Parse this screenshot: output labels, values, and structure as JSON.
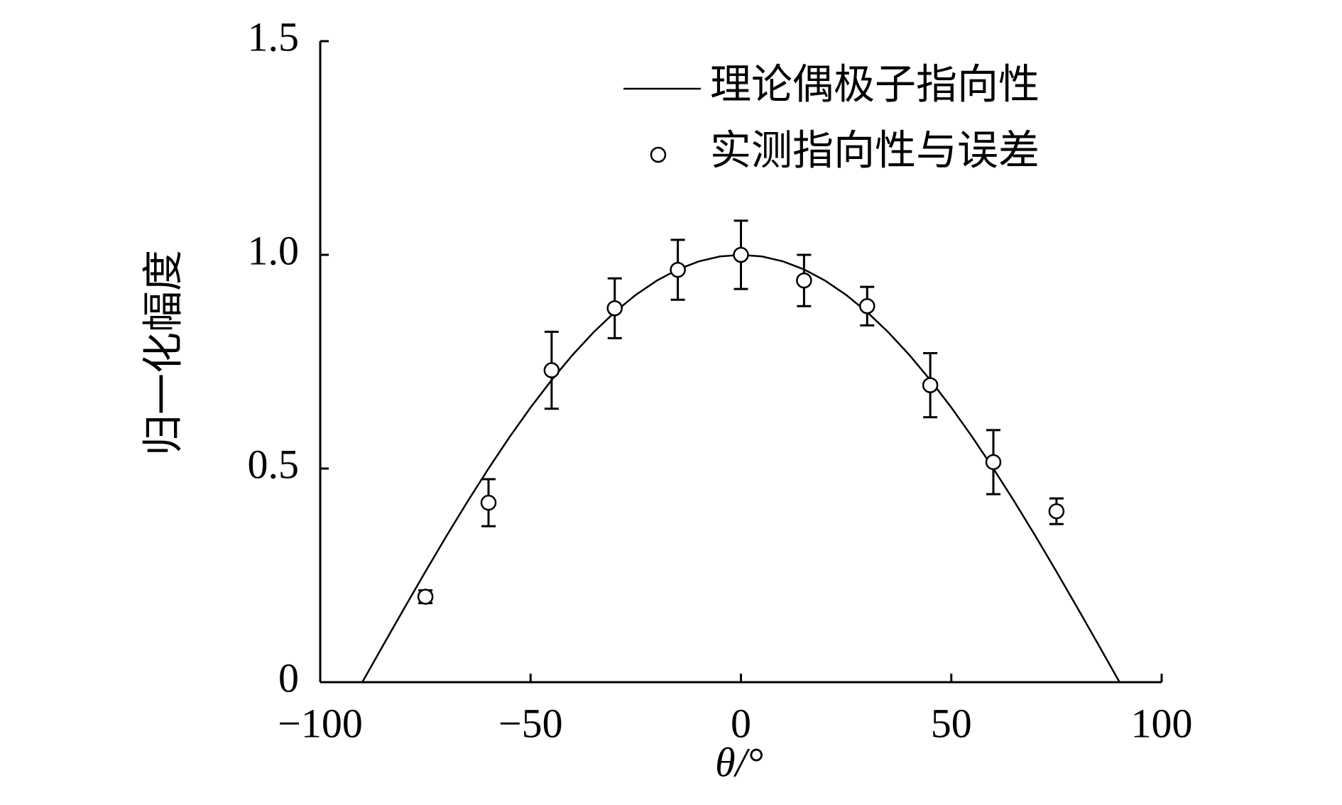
{
  "chart_data": {
    "type": "line",
    "xlabel": "θ/°",
    "ylabel": "归一化幅度",
    "xlim": [
      -100,
      100
    ],
    "xticks": [
      {
        "value": -100,
        "label": "−100"
      },
      {
        "value": -50,
        "label": "−50"
      },
      0,
      50,
      100
    ],
    "ylim": [
      0,
      1.5
    ],
    "yticks": [
      0,
      0.5,
      {
        "value": 1.0,
        "label": "1.0"
      },
      1.5
    ],
    "legend": "upper right",
    "series": [
      {
        "name": "理论偶极子指向性",
        "type": "line",
        "color": "#000000",
        "x": [
          -90,
          -85,
          -80,
          -75,
          -70,
          -65,
          -60,
          -55,
          -50,
          -45,
          -40,
          -35,
          -30,
          -25,
          -20,
          -15,
          -10,
          -5,
          0,
          5,
          10,
          15,
          20,
          25,
          30,
          35,
          40,
          45,
          50,
          55,
          60,
          65,
          70,
          75,
          80,
          85,
          90
        ],
        "values": [
          0,
          0.0872,
          0.1736,
          0.2588,
          0.342,
          0.4226,
          0.5,
          0.5736,
          0.6428,
          0.7071,
          0.766,
          0.8192,
          0.866,
          0.9063,
          0.9397,
          0.9659,
          0.9848,
          0.9962,
          1,
          0.9962,
          0.9848,
          0.9659,
          0.9397,
          0.9063,
          0.866,
          0.8192,
          0.766,
          0.7071,
          0.6428,
          0.5736,
          0.5,
          0.4226,
          0.342,
          0.2588,
          0.1736,
          0.0872,
          0
        ]
      },
      {
        "name": "实测指向性与误差",
        "type": "scatter",
        "color": "#000000",
        "x": [
          -75,
          -60,
          -45,
          -30,
          -15,
          0,
          15,
          30,
          45,
          60,
          75
        ],
        "values": [
          0.2,
          0.42,
          0.73,
          0.875,
          0.965,
          1.0,
          0.94,
          0.88,
          0.695,
          0.515,
          0.4
        ],
        "errors": [
          0.015,
          0.055,
          0.09,
          0.07,
          0.07,
          0.08,
          0.06,
          0.045,
          0.075,
          0.075,
          0.03
        ]
      }
    ]
  }
}
